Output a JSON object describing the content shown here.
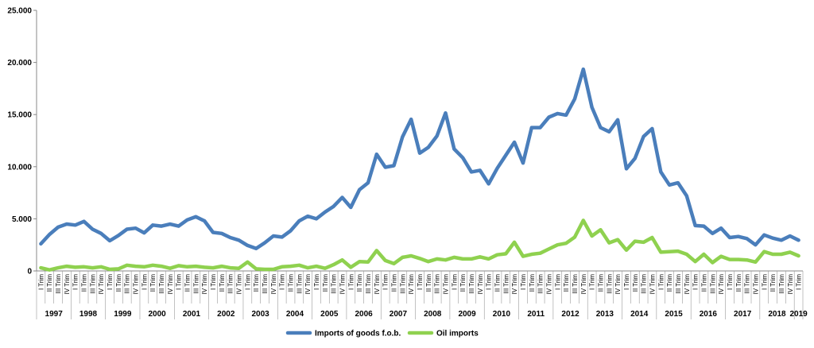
{
  "chart_data": {
    "type": "line",
    "title": "",
    "xlabel": "",
    "ylabel": "",
    "ylim": [
      0,
      25000
    ],
    "yticks": [
      0,
      5000,
      10000,
      15000,
      20000,
      25000
    ],
    "ytick_labels": [
      "0",
      "5.000",
      "10.000",
      "15.000",
      "20.000",
      "25.000"
    ],
    "quarter_labels": [
      "I Trim",
      "II Trim",
      "III Trim",
      "IV Trim"
    ],
    "years": [
      "1997",
      "1998",
      "1999",
      "2000",
      "2001",
      "2002",
      "2003",
      "2004",
      "2005",
      "2006",
      "2007",
      "2008",
      "2009",
      "2010",
      "2011",
      "2012",
      "2013",
      "2014",
      "2015",
      "2016",
      "2017",
      "2018",
      "2019"
    ],
    "grid": false,
    "legend": "bottom",
    "series": [
      {
        "name": "Imports of goods f.o.b.",
        "color": "#4a7ebb",
        "values": [
          2600,
          3500,
          4200,
          4500,
          4400,
          4750,
          4000,
          3600,
          2900,
          3400,
          4000,
          4100,
          3650,
          4400,
          4300,
          4500,
          4300,
          4900,
          5200,
          4800,
          3700,
          3600,
          3200,
          2950,
          2450,
          2150,
          2700,
          3350,
          3250,
          3850,
          4800,
          5250,
          5000,
          5650,
          6200,
          7050,
          6100,
          7800,
          8450,
          11200,
          9950,
          10100,
          12850,
          14550,
          11300,
          11850,
          12950,
          15150,
          11700,
          10850,
          9500,
          9650,
          8350,
          9850,
          11100,
          12350,
          10350,
          13750,
          13750,
          14750,
          15100,
          14950,
          16500,
          19350,
          15700,
          13750,
          13350,
          14500,
          9800,
          10800,
          12900,
          13650,
          9500,
          8250,
          8450,
          7200,
          4350,
          4300,
          3600,
          4100,
          3200,
          3300,
          3100,
          2500,
          3450,
          3150,
          2950,
          3350,
          2950
        ]
      },
      {
        "name": "Oil imports",
        "color": "#8fd14f",
        "values": [
          300,
          100,
          300,
          450,
          350,
          400,
          300,
          400,
          150,
          200,
          550,
          450,
          400,
          550,
          450,
          250,
          500,
          400,
          450,
          350,
          300,
          450,
          300,
          250,
          850,
          200,
          150,
          150,
          400,
          450,
          550,
          300,
          450,
          250,
          600,
          1050,
          350,
          900,
          850,
          1950,
          1000,
          700,
          1300,
          1450,
          1200,
          900,
          1150,
          1050,
          1300,
          1150,
          1150,
          1350,
          1150,
          1550,
          1650,
          2750,
          1400,
          1600,
          1700,
          2100,
          2500,
          2650,
          3250,
          4850,
          3350,
          3950,
          2700,
          3000,
          2000,
          2850,
          2750,
          3200,
          1800,
          1850,
          1900,
          1600,
          900,
          1600,
          800,
          1400,
          1100,
          1100,
          1050,
          850,
          1850,
          1600,
          1600,
          1800,
          1450
        ]
      }
    ]
  }
}
